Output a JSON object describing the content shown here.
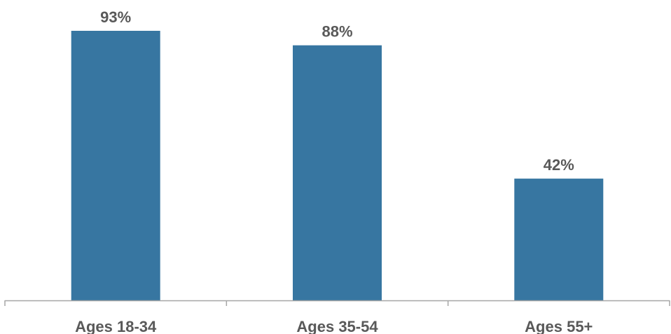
{
  "chart_data": {
    "type": "bar",
    "title": "",
    "xlabel": "",
    "ylabel": "",
    "categories": [
      "Ages 18-34",
      "Ages 35-54",
      "Ages 55+"
    ],
    "values": [
      93,
      88,
      42
    ],
    "value_labels": [
      "93%",
      "88%",
      "42%"
    ],
    "unit": "%",
    "ylim": [
      0,
      100
    ],
    "grid": false,
    "legend": "none",
    "colors": {
      "bar": "#3776a1",
      "text": "#595959",
      "axis": "#a6a6a6"
    }
  }
}
